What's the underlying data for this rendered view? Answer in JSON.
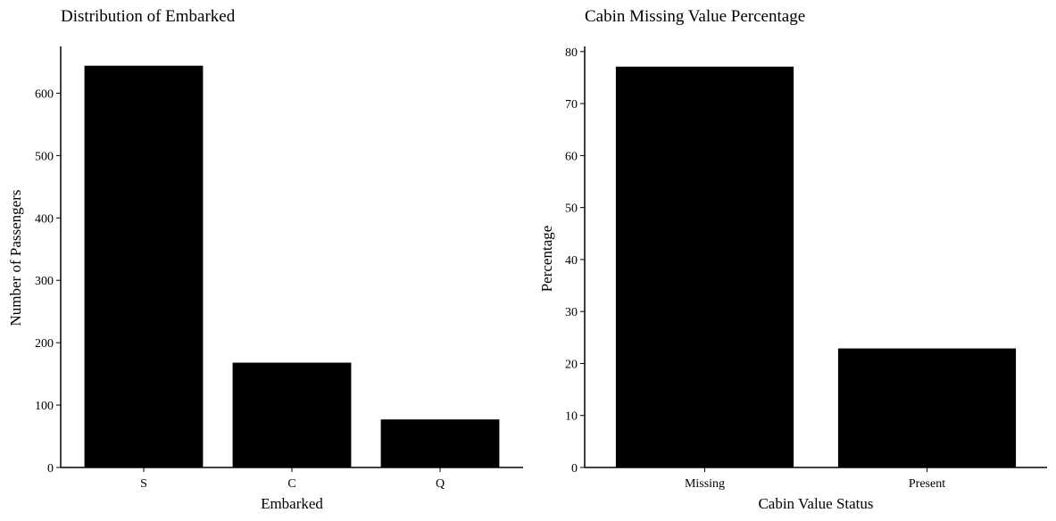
{
  "chart_data": [
    {
      "type": "bar",
      "title": "Distribution of Embarked",
      "xlabel": "Embarked",
      "ylabel": "Number of Passengers",
      "categories": [
        "S",
        "C",
        "Q"
      ],
      "values": [
        644,
        168,
        77
      ],
      "ylim": [
        0,
        675
      ],
      "yticks": [
        0,
        100,
        200,
        300,
        400,
        500,
        600
      ],
      "bar_color": "#000000",
      "grid": false,
      "legend": "none"
    },
    {
      "type": "bar",
      "title": "Cabin Missing Value Percentage",
      "xlabel": "Cabin Value Status",
      "ylabel": "Percentage",
      "categories": [
        "Missing",
        "Present"
      ],
      "values": [
        77.1,
        22.9
      ],
      "ylim": [
        0,
        81
      ],
      "yticks": [
        0,
        10,
        20,
        30,
        40,
        50,
        60,
        70,
        80
      ],
      "bar_color": "#000000",
      "grid": false,
      "legend": "none"
    }
  ]
}
